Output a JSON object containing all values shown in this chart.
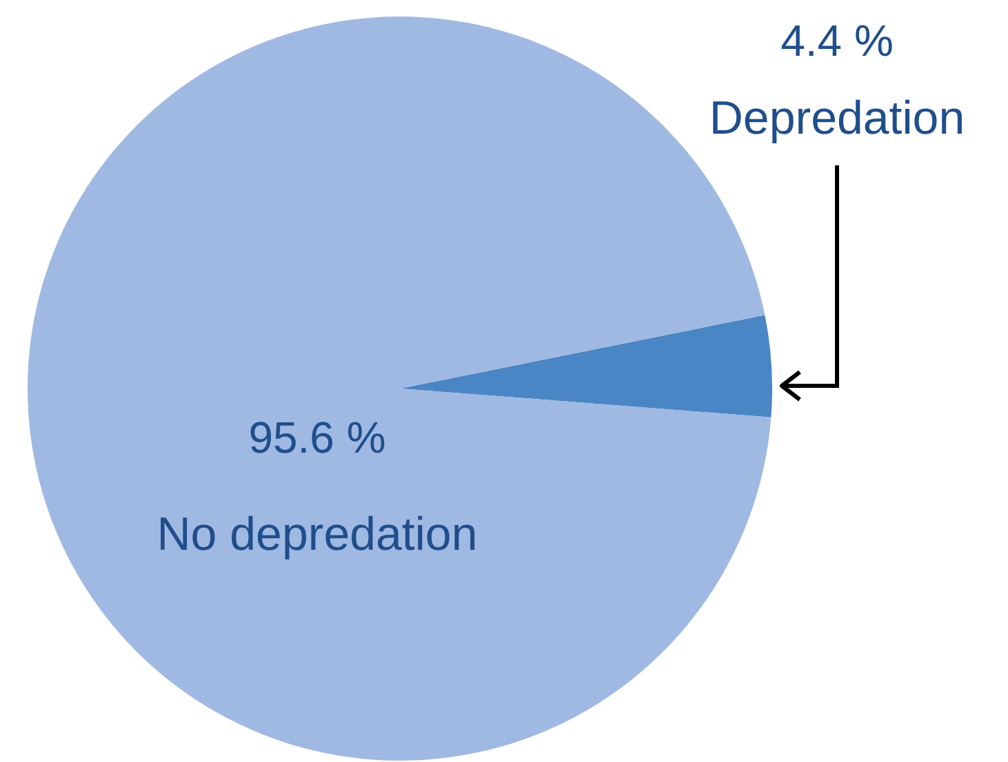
{
  "chart_data": {
    "type": "pie",
    "categories": [
      "Depredation",
      "No depredation"
    ],
    "values": [
      4.4,
      95.6
    ],
    "colors": [
      "#4a86c5",
      "#a0b9e3"
    ],
    "value_labels": [
      "4.4 %",
      "95.6 %"
    ]
  }
}
